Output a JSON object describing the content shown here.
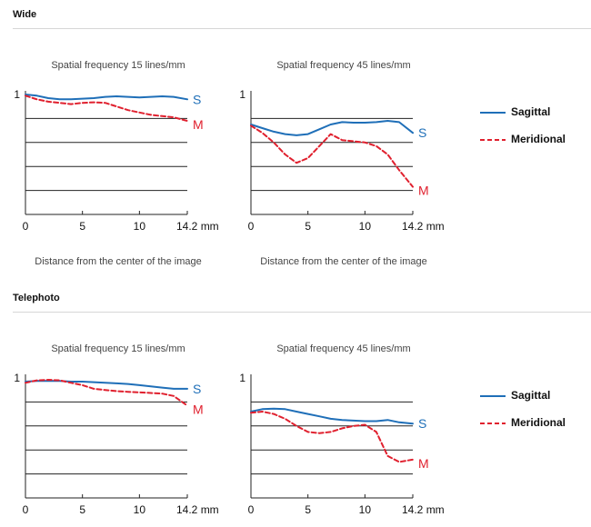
{
  "sections": [
    {
      "title": "Wide",
      "charts": [
        {
          "title": "Spatial frequency 15 lines/mm",
          "xlabel": "Distance from the center of the image",
          "chart_data": {
            "type": "line",
            "title": "Spatial frequency 15 lines/mm",
            "xlabel": "Distance from the center of the image",
            "ylabel": "",
            "xlim": [
              0,
              14.2
            ],
            "ylim": [
              0,
              1
            ],
            "x_ticks": [
              "0",
              "5",
              "10",
              "14.2 mm"
            ],
            "y_ticks": [
              "1"
            ],
            "grid": "horizontal",
            "series": [
              {
                "name": "S",
                "color": "#1f6fb8",
                "style": "solid",
                "x": [
                  0,
                  1,
                  2,
                  3,
                  4,
                  5,
                  6,
                  7,
                  8,
                  9,
                  10,
                  11,
                  12,
                  13,
                  14.2
                ],
                "y": [
                  1.0,
                  0.99,
                  0.97,
                  0.96,
                  0.96,
                  0.965,
                  0.97,
                  0.98,
                  0.985,
                  0.98,
                  0.975,
                  0.98,
                  0.985,
                  0.98,
                  0.96
                ]
              },
              {
                "name": "M",
                "color": "#e0202e",
                "style": "dashed",
                "x": [
                  0,
                  1,
                  2,
                  3,
                  4,
                  5,
                  6,
                  7,
                  8,
                  9,
                  10,
                  11,
                  12,
                  13,
                  14.2
                ],
                "y": [
                  0.99,
                  0.96,
                  0.94,
                  0.93,
                  0.92,
                  0.93,
                  0.935,
                  0.93,
                  0.9,
                  0.87,
                  0.85,
                  0.83,
                  0.82,
                  0.81,
                  0.78
                ]
              }
            ]
          }
        },
        {
          "title": "Spatial frequency 45 lines/mm",
          "xlabel": "Distance from the center of the image",
          "chart_data": {
            "type": "line",
            "title": "Spatial frequency 45 lines/mm",
            "xlabel": "Distance from the center of the image",
            "ylabel": "",
            "xlim": [
              0,
              14.2
            ],
            "ylim": [
              0,
              1
            ],
            "x_ticks": [
              "0",
              "5",
              "10",
              "14.2 mm"
            ],
            "y_ticks": [
              "1"
            ],
            "grid": "horizontal",
            "series": [
              {
                "name": "S",
                "color": "#1f6fb8",
                "style": "solid",
                "x": [
                  0,
                  1,
                  2,
                  3,
                  4,
                  5,
                  6,
                  7,
                  8,
                  9,
                  10,
                  11,
                  12,
                  13,
                  14.2
                ],
                "y": [
                  0.75,
                  0.72,
                  0.69,
                  0.67,
                  0.66,
                  0.67,
                  0.71,
                  0.75,
                  0.77,
                  0.765,
                  0.765,
                  0.77,
                  0.78,
                  0.77,
                  0.68
                ]
              },
              {
                "name": "M",
                "color": "#e0202e",
                "style": "dashed",
                "x": [
                  0,
                  1,
                  2,
                  3,
                  4,
                  5,
                  6,
                  7,
                  8,
                  9,
                  10,
                  11,
                  12,
                  13,
                  14.2
                ],
                "y": [
                  0.74,
                  0.68,
                  0.6,
                  0.5,
                  0.43,
                  0.47,
                  0.57,
                  0.67,
                  0.62,
                  0.61,
                  0.6,
                  0.57,
                  0.5,
                  0.37,
                  0.23
                ]
              }
            ]
          }
        }
      ]
    },
    {
      "title": "Telephoto",
      "charts": [
        {
          "title": "Spatial frequency 15 lines/mm",
          "chart_data": {
            "type": "line",
            "title": "Spatial frequency 15 lines/mm",
            "xlabel": "",
            "ylabel": "",
            "xlim": [
              0,
              14.2
            ],
            "ylim": [
              0,
              1
            ],
            "x_ticks": [
              "0",
              "5",
              "10",
              "14.2 mm"
            ],
            "y_ticks": [
              "1"
            ],
            "grid": "horizontal",
            "series": [
              {
                "name": "S",
                "color": "#1f6fb8",
                "style": "solid",
                "x": [
                  0,
                  1,
                  2,
                  3,
                  4,
                  5,
                  6,
                  7,
                  8,
                  9,
                  10,
                  11,
                  12,
                  13,
                  14.2
                ],
                "y": [
                  0.97,
                  0.975,
                  0.975,
                  0.975,
                  0.97,
                  0.97,
                  0.965,
                  0.96,
                  0.955,
                  0.95,
                  0.94,
                  0.93,
                  0.92,
                  0.91,
                  0.91
                ]
              },
              {
                "name": "M",
                "color": "#e0202e",
                "style": "dashed",
                "x": [
                  0,
                  1,
                  2,
                  3,
                  4,
                  5,
                  6,
                  7,
                  8,
                  9,
                  10,
                  11,
                  12,
                  13,
                  14.2
                ],
                "y": [
                  0.96,
                  0.98,
                  0.985,
                  0.98,
                  0.96,
                  0.94,
                  0.91,
                  0.9,
                  0.89,
                  0.885,
                  0.88,
                  0.875,
                  0.87,
                  0.85,
                  0.77
                ]
              }
            ]
          }
        },
        {
          "title": "Spatial frequency 45 lines/mm",
          "chart_data": {
            "type": "line",
            "title": "Spatial frequency 45 lines/mm",
            "xlabel": "",
            "ylabel": "",
            "xlim": [
              0,
              14.2
            ],
            "ylim": [
              0,
              1
            ],
            "x_ticks": [
              "0",
              "5",
              "10",
              "14.2 mm"
            ],
            "y_ticks": [
              "1"
            ],
            "grid": "horizontal",
            "series": [
              {
                "name": "S",
                "color": "#1f6fb8",
                "style": "solid",
                "x": [
                  0,
                  1,
                  2,
                  3,
                  4,
                  5,
                  6,
                  7,
                  8,
                  9,
                  10,
                  11,
                  12,
                  13,
                  14.2
                ],
                "y": [
                  0.72,
                  0.74,
                  0.745,
                  0.74,
                  0.72,
                  0.7,
                  0.68,
                  0.66,
                  0.65,
                  0.645,
                  0.64,
                  0.64,
                  0.65,
                  0.63,
                  0.62
                ]
              },
              {
                "name": "M",
                "color": "#e0202e",
                "style": "dashed",
                "x": [
                  0,
                  1,
                  2,
                  3,
                  4,
                  5,
                  6,
                  7,
                  8,
                  9,
                  10,
                  11,
                  12,
                  13,
                  14.2
                ],
                "y": [
                  0.71,
                  0.72,
                  0.7,
                  0.66,
                  0.6,
                  0.55,
                  0.54,
                  0.55,
                  0.58,
                  0.6,
                  0.61,
                  0.55,
                  0.35,
                  0.3,
                  0.32
                ]
              }
            ]
          }
        }
      ]
    }
  ],
  "legend": [
    {
      "label": "Sagittal",
      "color": "#1f6fb8",
      "style": "solid"
    },
    {
      "label": "Meridional",
      "color": "#e0202e",
      "style": "dashed"
    }
  ]
}
